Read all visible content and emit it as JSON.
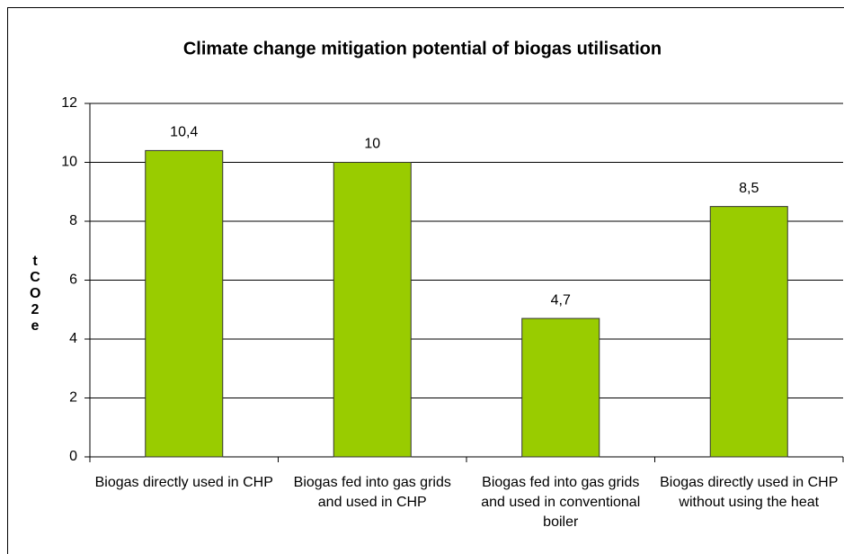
{
  "chart_data": {
    "type": "bar",
    "title": "Climate change mitigation potential of biogas utilisation",
    "y_label": "tCO2e",
    "categories": [
      "Biogas directly used in CHP",
      "Biogas fed into gas grids and used in CHP",
      "Biogas fed into gas grids and used in conventional boiler",
      "Biogas directly used in CHP without using the heat"
    ],
    "values": [
      10.4,
      10,
      4.7,
      8.5
    ],
    "value_labels": [
      "10,4",
      "10",
      "4,7",
      "8,5"
    ],
    "color": "#99cc00",
    "ylim": [
      0,
      12
    ],
    "yticks": [
      0,
      2,
      4,
      6,
      8,
      10,
      12
    ],
    "grid": true
  }
}
